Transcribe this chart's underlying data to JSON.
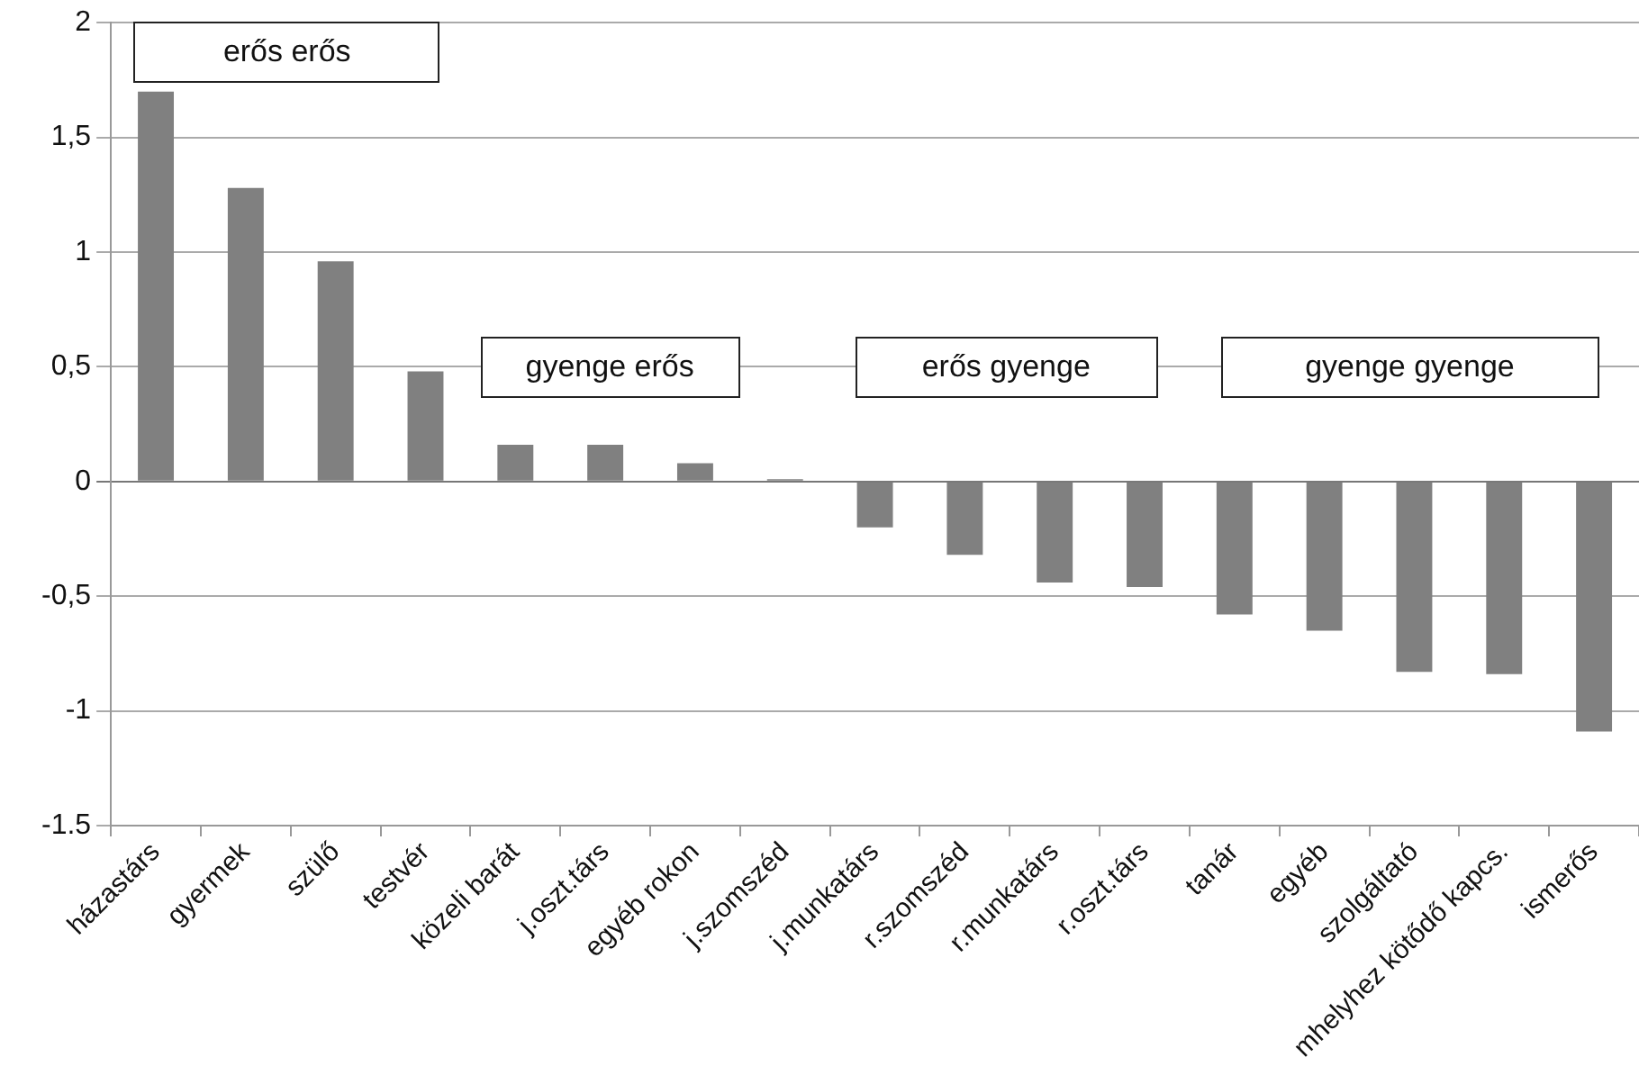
{
  "chart_data": {
    "type": "bar",
    "categories": [
      "házastárs",
      "gyermek",
      "szülő",
      "testvér",
      "közeli barát",
      "j.oszt.társ",
      "egyéb rokon",
      "j.szomszéd",
      "j.munkatárs",
      "r.szomszéd",
      "r.munkatárs",
      "r.oszt.társ",
      "tanár",
      "egyéb",
      "szolgáltató",
      "mhelyhez kötődő kapcs.",
      "ismerős"
    ],
    "values": [
      1.7,
      1.28,
      0.96,
      0.48,
      0.16,
      0.16,
      0.08,
      0.01,
      -0.2,
      -0.32,
      -0.44,
      -0.46,
      -0.58,
      -0.65,
      -0.83,
      -0.84,
      -1.09
    ],
    "color": "#808080",
    "ylim": [
      -1.5,
      2
    ],
    "yticks": [
      {
        "value": 2,
        "label": "2"
      },
      {
        "value": 1.5,
        "label": "1,5"
      },
      {
        "value": 1,
        "label": "1"
      },
      {
        "value": 0.5,
        "label": "0,5"
      },
      {
        "value": 0,
        "label": "0"
      },
      {
        "value": -0.5,
        "label": "-0,5"
      },
      {
        "value": -1,
        "label": "-1"
      },
      {
        "value": -1.5,
        "label": "-1.5"
      }
    ],
    "grid": "y",
    "legend": false,
    "annotations": [
      "erős erős",
      "gyenge erős",
      "erős gyenge",
      "gyenge gyenge"
    ]
  }
}
